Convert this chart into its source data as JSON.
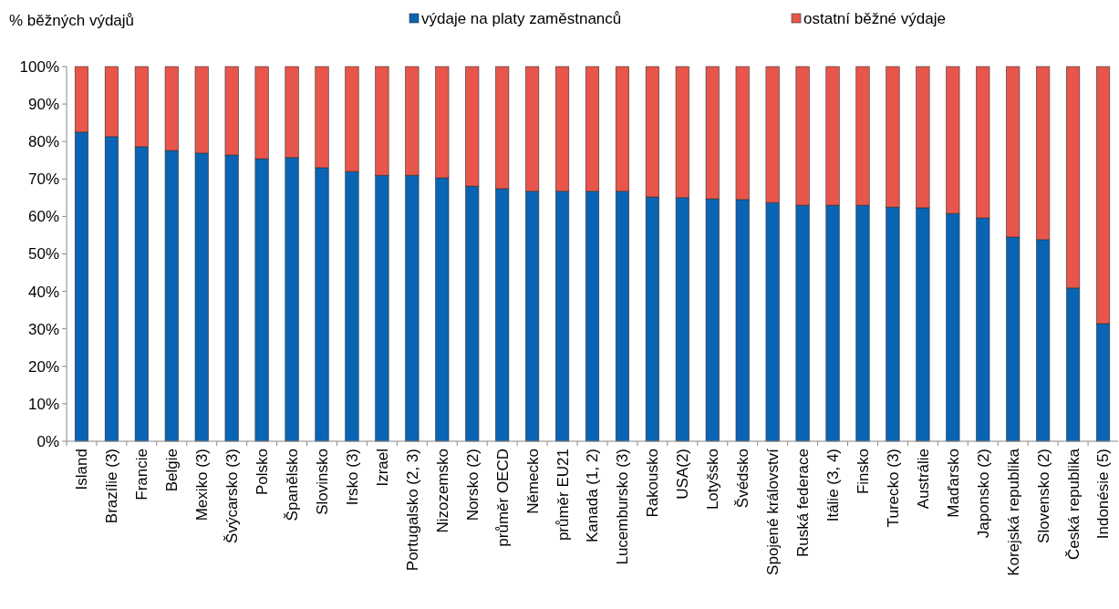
{
  "chart_data": {
    "type": "bar",
    "stacked": true,
    "ylabel": "% běžných výdajů",
    "legend": "top",
    "categories": [
      "Island",
      "Brazílie (3)",
      "Francie",
      "Belgie",
      "Mexiko (3)",
      "Švýcarsko (3)",
      "Polsko",
      "Španělsko",
      "Slovinsko",
      "Irsko (3)",
      "Izrael",
      "Portugalsko (2, 3)",
      "Nizozemsko",
      "Norsko (2)",
      "průměr OECD",
      "Německo",
      "průměr EU21",
      "Kanada (1, 2)",
      "Lucembursko (3)",
      "Rakousko",
      "USA(2)",
      "Lotyšsko",
      "Švédsko",
      "Spojené království",
      "Ruská federace",
      "Itálie (3, 4)",
      "Finsko",
      "Turecko (3)",
      "Austrálie",
      "Maďarsko",
      "Japonsko (2)",
      "Korejská republika",
      "Slovensko (2)",
      "Česká republika",
      "Indonésie (5)"
    ],
    "series": [
      {
        "name": "výdaje na platy zaměstnanců",
        "color": "#0a64b4",
        "values": [
          82.5,
          81.3,
          78.6,
          77.6,
          76.9,
          76.4,
          75.4,
          75.7,
          73.0,
          72.0,
          71.0,
          71.0,
          70.3,
          68.1,
          67.4,
          66.7,
          66.7,
          66.7,
          66.7,
          65.2,
          65.0,
          64.7,
          64.5,
          63.7,
          63.0,
          63.0,
          63.0,
          62.5,
          62.3,
          60.8,
          59.6,
          54.5,
          53.8,
          40.9,
          31.4
        ]
      },
      {
        "name": "ostatní běžné výdaje",
        "color": "#e8564b",
        "values": [
          17.5,
          18.7,
          21.4,
          22.4,
          23.1,
          23.6,
          24.6,
          24.3,
          27.0,
          28.0,
          29.0,
          29.0,
          29.7,
          31.9,
          32.6,
          33.3,
          33.3,
          33.3,
          33.3,
          34.8,
          35.0,
          35.3,
          35.5,
          36.3,
          37.0,
          37.0,
          37.0,
          37.5,
          37.7,
          39.2,
          40.4,
          45.5,
          46.2,
          59.1,
          68.6
        ]
      }
    ],
    "ylim": [
      0,
      100
    ],
    "yticks": [
      {
        "value": 0,
        "label": "0%"
      },
      {
        "value": 10,
        "label": "10%"
      },
      {
        "value": 20,
        "label": "20%"
      },
      {
        "value": 30,
        "label": "30%"
      },
      {
        "value": 40,
        "label": "40%"
      },
      {
        "value": 50,
        "label": "50%"
      },
      {
        "value": 60,
        "label": "60%"
      },
      {
        "value": 70,
        "label": "70%"
      },
      {
        "value": 80,
        "label": "80%"
      },
      {
        "value": 90,
        "label": "90%"
      },
      {
        "value": 100,
        "label": "100%"
      }
    ]
  }
}
